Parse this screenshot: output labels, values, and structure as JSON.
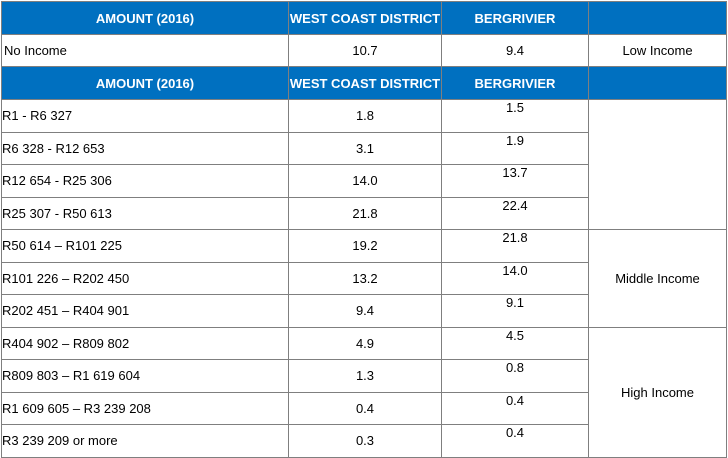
{
  "headers": [
    "AMOUNT (2016)",
    "WEST COAST DISTRICT",
    "BERGRIVIER",
    ""
  ],
  "no_income": {
    "label": "No Income",
    "west_coast": "10.7",
    "bergrivier": "9.4",
    "band": "Low Income"
  },
  "rows": [
    {
      "label": "R1 - R6 327",
      "west_coast": "1.8",
      "bergrivier": "1.5"
    },
    {
      "label": "R6 328 - R12 653",
      "west_coast": "3.1",
      "bergrivier": "1.9"
    },
    {
      "label": "R12 654 - R25 306",
      "west_coast": "14.0",
      "bergrivier": "13.7"
    },
    {
      "label": "R25 307 - R50 613",
      "west_coast": "21.8",
      "bergrivier": "22.4"
    },
    {
      "label": "R50 614 – R101 225",
      "west_coast": "19.2",
      "bergrivier": "21.8"
    },
    {
      "label": "R101 226 – R202 450",
      "west_coast": "13.2",
      "bergrivier": "14.0"
    },
    {
      "label": "R202 451 – R404 901",
      "west_coast": "9.4",
      "bergrivier": "9.1"
    },
    {
      "label": "R404 902 – R809 802",
      "west_coast": "4.9",
      "bergrivier": "4.5"
    },
    {
      "label": "R809 803 – R1 619 604",
      "west_coast": "1.3",
      "bergrivier": "0.8"
    },
    {
      "label": "R1 609 605 – R3 239 208",
      "west_coast": "0.4",
      "bergrivier": "0.4"
    },
    {
      "label": "R3 239 209 or more",
      "west_coast": "0.3",
      "bergrivier": "0.4"
    }
  ],
  "bands": {
    "middle": "Middle Income",
    "high": "High Income"
  },
  "colors": {
    "header_bg": "#0070c0",
    "header_text": "#ffffff",
    "border": "#7f7f7f"
  }
}
